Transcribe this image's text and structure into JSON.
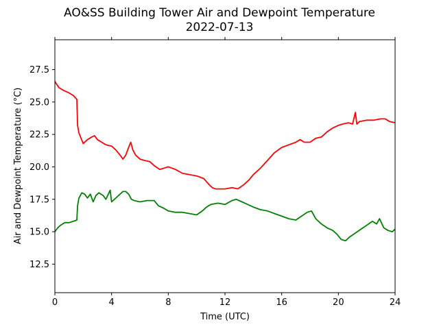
{
  "chart_data": {
    "type": "line",
    "title": "AO&SS Building Tower Air and Dewpoint Temperature",
    "subtitle": "2022-07-13",
    "xlabel": "Time (UTC)",
    "ylabel": "Air and Dewpoint Temperature (°C)",
    "xlim": [
      0,
      24
    ],
    "ylim": [
      10.3,
      29.8
    ],
    "xticks": [
      0,
      4,
      8,
      12,
      16,
      20,
      24
    ],
    "xtick_labels": [
      "0",
      "4",
      "8",
      "12",
      "16",
      "20",
      "24"
    ],
    "yticks": [
      12.5,
      15.0,
      17.5,
      20.0,
      22.5,
      25.0,
      27.5
    ],
    "ytick_labels": [
      "12.5",
      "15.0",
      "17.5",
      "20.0",
      "22.5",
      "25.0",
      "27.5"
    ],
    "grid": false,
    "series": [
      {
        "color": "#ff0000",
        "x": [
          0,
          0.1,
          0.3,
          0.6,
          1.0,
          1.3,
          1.55,
          1.6,
          1.7,
          1.85,
          2.0,
          2.3,
          2.6,
          2.8,
          3.0,
          3.3,
          3.6,
          4.0,
          4.3,
          4.6,
          4.8,
          5.0,
          5.2,
          5.35,
          5.5,
          5.7,
          6.0,
          6.3,
          6.7,
          7.0,
          7.4,
          7.7,
          8.0,
          8.5,
          9.0,
          9.5,
          10.0,
          10.5,
          10.9,
          11.1,
          11.3,
          11.6,
          12.0,
          12.5,
          12.9,
          13.3,
          13.7,
          14.0,
          14.5,
          15.0,
          15.5,
          16.0,
          16.5,
          17.0,
          17.3,
          17.6,
          18.0,
          18.4,
          18.8,
          19.2,
          19.6,
          20.0,
          20.3,
          20.7,
          21.0,
          21.2,
          21.3,
          21.5,
          22.0,
          22.5,
          23.0,
          23.3,
          23.6,
          24.0
        ],
        "values": [
          26.6,
          26.4,
          26.1,
          25.9,
          25.7,
          25.5,
          25.2,
          23.2,
          22.6,
          22.2,
          21.8,
          22.1,
          22.3,
          22.4,
          22.1,
          21.9,
          21.7,
          21.6,
          21.3,
          20.9,
          20.6,
          20.9,
          21.5,
          21.9,
          21.3,
          20.9,
          20.6,
          20.5,
          20.4,
          20.1,
          19.8,
          19.9,
          20.0,
          19.8,
          19.5,
          19.4,
          19.3,
          19.1,
          18.6,
          18.4,
          18.3,
          18.3,
          18.3,
          18.4,
          18.3,
          18.6,
          19.0,
          19.4,
          19.9,
          20.5,
          21.1,
          21.5,
          21.7,
          21.9,
          22.1,
          21.9,
          21.9,
          22.2,
          22.3,
          22.7,
          23.0,
          23.2,
          23.3,
          23.4,
          23.3,
          24.2,
          23.3,
          23.5,
          23.6,
          23.6,
          23.7,
          23.7,
          23.5,
          23.4
        ]
      },
      {
        "color": "#008000",
        "x": [
          0,
          0.2,
          0.4,
          0.7,
          1.0,
          1.3,
          1.55,
          1.6,
          1.7,
          1.9,
          2.1,
          2.3,
          2.5,
          2.7,
          2.9,
          3.1,
          3.4,
          3.6,
          3.9,
          4.0,
          4.2,
          4.4,
          4.6,
          4.8,
          5.0,
          5.2,
          5.4,
          5.6,
          6.0,
          6.5,
          7.0,
          7.3,
          7.7,
          8.0,
          8.5,
          9.0,
          9.5,
          10.0,
          10.4,
          10.7,
          11.0,
          11.5,
          12.0,
          12.5,
          12.8,
          13.2,
          13.6,
          14.0,
          14.5,
          15.0,
          15.5,
          16.0,
          16.5,
          17.0,
          17.4,
          17.8,
          18.1,
          18.4,
          18.8,
          19.2,
          19.6,
          19.9,
          20.2,
          20.5,
          20.8,
          21.2,
          21.6,
          22.0,
          22.4,
          22.7,
          22.9,
          23.2,
          23.5,
          23.8,
          24.0
        ],
        "values": [
          15.0,
          15.3,
          15.5,
          15.7,
          15.7,
          15.8,
          15.9,
          17.0,
          17.6,
          18.0,
          17.9,
          17.6,
          17.9,
          17.3,
          17.8,
          18.0,
          17.8,
          17.5,
          18.2,
          17.3,
          17.5,
          17.7,
          17.9,
          18.1,
          18.1,
          17.9,
          17.5,
          17.4,
          17.3,
          17.4,
          17.4,
          17.0,
          16.8,
          16.6,
          16.5,
          16.5,
          16.4,
          16.3,
          16.6,
          16.9,
          17.1,
          17.2,
          17.1,
          17.4,
          17.5,
          17.3,
          17.1,
          16.9,
          16.7,
          16.6,
          16.4,
          16.2,
          16.0,
          15.9,
          16.2,
          16.5,
          16.6,
          16.0,
          15.6,
          15.3,
          15.1,
          14.8,
          14.4,
          14.3,
          14.6,
          14.9,
          15.2,
          15.5,
          15.8,
          15.6,
          16.0,
          15.3,
          15.1,
          15.0,
          15.2
        ]
      }
    ]
  }
}
